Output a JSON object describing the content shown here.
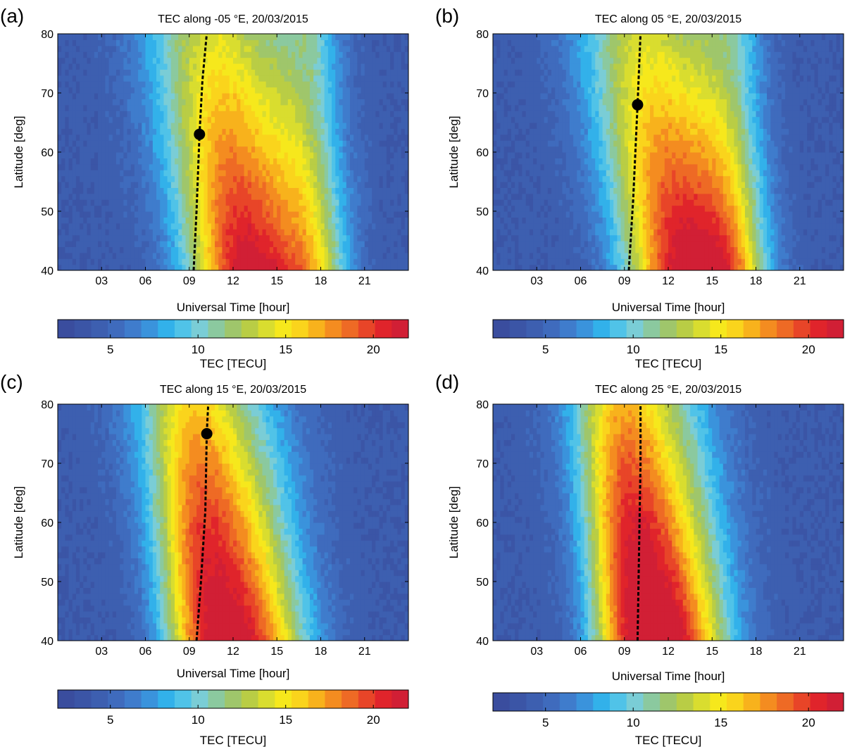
{
  "chart_data": [
    {
      "type": "heatmap",
      "panel_label": "(a)",
      "title": "TEC along -05 °E, 20/03/2015",
      "xlabel": "Universal Time [hour]",
      "ylabel": "Latitude [deg]",
      "xlim": [
        0,
        24
      ],
      "ylim": [
        40,
        80
      ],
      "xticks": [
        "03",
        "06",
        "09",
        "12",
        "15",
        "18",
        "21"
      ],
      "yticks": [
        "40",
        "50",
        "60",
        "70",
        "80"
      ],
      "peak_ut": 13.0,
      "peak_width": 2.8,
      "peak_skew": 0.06,
      "peak_value": 22,
      "secondary_ut": 17.5,
      "secondary_value": 19,
      "line": [
        [
          9.3,
          40
        ],
        [
          9.5,
          50
        ],
        [
          9.7,
          63
        ],
        [
          9.9,
          72
        ],
        [
          10.2,
          80
        ]
      ],
      "marker": {
        "x": 9.7,
        "y": 63
      },
      "colorbar": {
        "label": "TEC [TECU]",
        "min": 2,
        "max": 22,
        "ticks": [
          "5",
          "10",
          "15",
          "20"
        ]
      }
    },
    {
      "type": "heatmap",
      "panel_label": "(b)",
      "title": "TEC along 05 °E, 20/03/2015",
      "xlabel": "Universal Time [hour]",
      "ylabel": "Latitude [deg]",
      "xlim": [
        0,
        24
      ],
      "ylim": [
        40,
        80
      ],
      "xticks": [
        "03",
        "06",
        "09",
        "12",
        "15",
        "18",
        "21"
      ],
      "yticks": [
        "40",
        "50",
        "60",
        "70",
        "80"
      ],
      "peak_ut": 13.0,
      "peak_width": 2.7,
      "peak_skew": 0.07,
      "peak_value": 21.5,
      "secondary_ut": 16.5,
      "secondary_value": 19.5,
      "line": [
        [
          9.3,
          40
        ],
        [
          9.6,
          52
        ],
        [
          9.9,
          68
        ],
        [
          10.1,
          80
        ]
      ],
      "marker": {
        "x": 9.9,
        "y": 68
      },
      "colorbar": {
        "label": "TEC [TECU]",
        "min": 2,
        "max": 22,
        "ticks": [
          "5",
          "10",
          "15",
          "20"
        ]
      }
    },
    {
      "type": "heatmap",
      "panel_label": "(c)",
      "title": "TEC along 15 °E, 20/03/2015",
      "xlabel": "Universal Time [hour]",
      "ylabel": "Latitude [deg]",
      "xlim": [
        0,
        24
      ],
      "ylim": [
        40,
        80
      ],
      "xticks": [
        "03",
        "06",
        "09",
        "12",
        "15",
        "18",
        "21"
      ],
      "yticks": [
        "40",
        "50",
        "60",
        "70",
        "80"
      ],
      "peak_ut": 12.8,
      "peak_width": 2.9,
      "peak_skew": 0.07,
      "peak_value": 21,
      "secondary_ut": 9.5,
      "secondary_value": 15.5,
      "line": [
        [
          9.5,
          40
        ],
        [
          9.8,
          50
        ],
        [
          10.1,
          62
        ],
        [
          10.2,
          75
        ],
        [
          10.3,
          80
        ]
      ],
      "marker": {
        "x": 10.2,
        "y": 75
      },
      "colorbar": {
        "label": "TEC [TECU]",
        "min": 2,
        "max": 22,
        "ticks": [
          "5",
          "10",
          "15",
          "20"
        ]
      }
    },
    {
      "type": "heatmap",
      "panel_label": "(d)",
      "title": "TEC along 25 °E, 20/03/2015",
      "xlabel": "Universal Time [hour]",
      "ylabel": "Latitude [deg]",
      "xlim": [
        0,
        24
      ],
      "ylim": [
        40,
        80
      ],
      "xticks": [
        "03",
        "06",
        "09",
        "12",
        "15",
        "18",
        "21"
      ],
      "yticks": [
        "40",
        "50",
        "60",
        "70",
        "80"
      ],
      "peak_ut": 12.3,
      "peak_width": 2.7,
      "peak_skew": 0.06,
      "peak_value": 21.5,
      "secondary_ut": 9.0,
      "secondary_value": 19,
      "line": [
        [
          9.9,
          40
        ],
        [
          10.0,
          55
        ],
        [
          10.1,
          70
        ],
        [
          10.1,
          80
        ]
      ],
      "marker": null,
      "colorbar": {
        "label": "TEC [TECU]",
        "min": 2,
        "max": 22,
        "ticks": [
          "5",
          "10",
          "15",
          "20"
        ]
      }
    }
  ],
  "colormap": [
    "#3a4d9e",
    "#3b55a6",
    "#3d5fb0",
    "#3f6bbd",
    "#3f7ccc",
    "#3a93dc",
    "#32b1ea",
    "#50c3e8",
    "#7acdd6",
    "#8bc99f",
    "#9fc66b",
    "#b9cd45",
    "#d9dd2f",
    "#f6e81c",
    "#fad41c",
    "#f8b21c",
    "#f48c20",
    "#ee6a25",
    "#e84528",
    "#e0242b",
    "#d11f35"
  ]
}
